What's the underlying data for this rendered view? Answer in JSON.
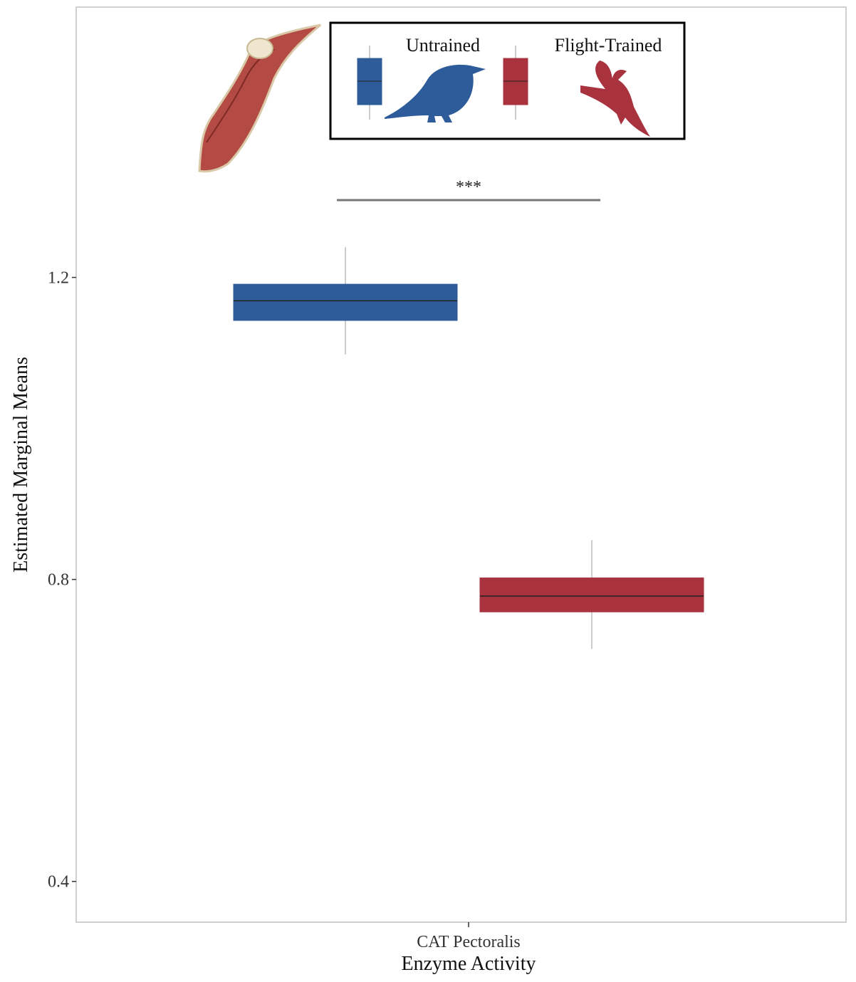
{
  "chart_data": {
    "type": "box",
    "category": "CAT Pectoralis",
    "x_label": "Enzyme Activity",
    "y_label": "Estimated Marginal Means",
    "ylim": [
      0.346,
      1.558
    ],
    "yticks": [
      0.4,
      0.8,
      1.2
    ],
    "grid": false,
    "series": [
      {
        "name": "Untrained",
        "color": "#2e5c9a",
        "stats": {
          "lower_whisker": 1.098,
          "q1": 1.143,
          "median": 1.169,
          "q3": 1.191,
          "upper_whisker": 1.24
        }
      },
      {
        "name": "Flight-Trained",
        "color": "#a8323e",
        "stats": {
          "lower_whisker": 0.708,
          "q1": 0.757,
          "median": 0.778,
          "q3": 0.802,
          "upper_whisker": 0.852
        }
      }
    ],
    "annotation": "***"
  }
}
